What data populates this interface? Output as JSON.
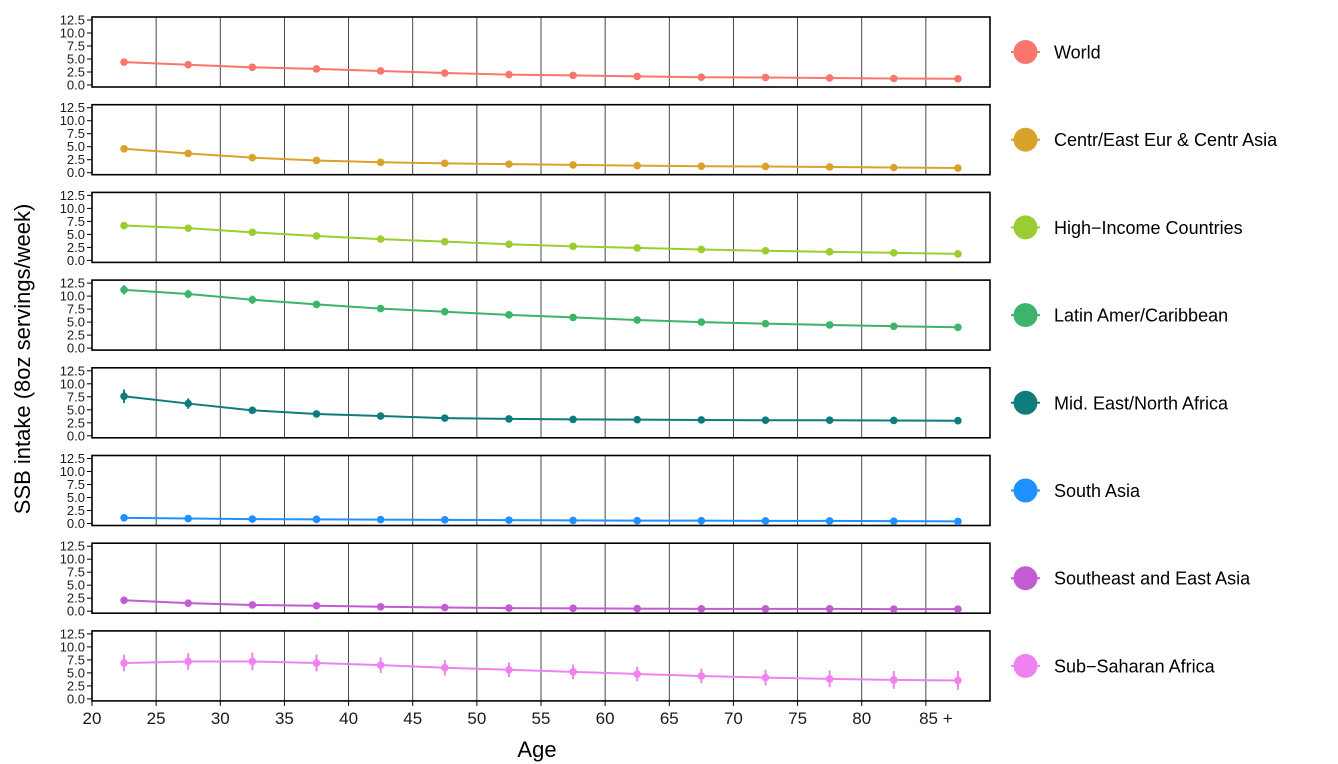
{
  "chart_data": {
    "type": "line",
    "xlabel": "Age",
    "ylabel": "SSB intake (8oz servings/week)",
    "xlim": [
      20,
      90
    ],
    "x_ticks": [
      20,
      25,
      30,
      35,
      40,
      45,
      50,
      55,
      60,
      65,
      70,
      75,
      80,
      85
    ],
    "x_tick_labels": [
      "20",
      "25",
      "30",
      "35",
      "40",
      "45",
      "50",
      "55",
      "60",
      "65",
      "70",
      "75",
      "80",
      "85 +"
    ],
    "ylim": [
      0,
      12.5
    ],
    "y_ticks": [
      0,
      2.5,
      5,
      7.5,
      10,
      12.5
    ],
    "y_tick_labels": [
      "0.0",
      "2.5",
      "5.0",
      "7.5",
      "10.0",
      "12.5"
    ],
    "grid": "vertical lines at each x tick",
    "legend_position": "right",
    "x": [
      22.5,
      27.5,
      32.5,
      37.5,
      42.5,
      47.5,
      52.5,
      57.5,
      62.5,
      67.5,
      72.5,
      77.5,
      82.5,
      87.5
    ],
    "series": [
      {
        "name": "World",
        "color": "#F8766D",
        "values": [
          4.4,
          3.9,
          3.4,
          3.1,
          2.7,
          2.3,
          2.0,
          1.85,
          1.65,
          1.5,
          1.45,
          1.35,
          1.25,
          1.2
        ],
        "err": [
          0.3,
          0.25,
          0.2,
          0.2,
          0.2,
          0.15,
          0.15,
          0.15,
          0.1,
          0.1,
          0.1,
          0.1,
          0.1,
          0.1
        ]
      },
      {
        "name": "Centr/East Eur & Centr Asia",
        "color": "#D9A22A",
        "values": [
          4.6,
          3.7,
          2.9,
          2.35,
          2.0,
          1.8,
          1.65,
          1.5,
          1.35,
          1.25,
          1.2,
          1.1,
          1.0,
          0.9
        ],
        "err": [
          0.5,
          0.4,
          0.3,
          0.25,
          0.2,
          0.2,
          0.2,
          0.15,
          0.15,
          0.15,
          0.15,
          0.15,
          0.15,
          0.15
        ]
      },
      {
        "name": "High−Income Countries",
        "color": "#9ACD32",
        "values": [
          6.7,
          6.2,
          5.4,
          4.7,
          4.1,
          3.6,
          3.1,
          2.7,
          2.4,
          2.1,
          1.85,
          1.65,
          1.45,
          1.25
        ],
        "err": [
          0.3,
          0.3,
          0.25,
          0.25,
          0.2,
          0.2,
          0.2,
          0.15,
          0.15,
          0.15,
          0.15,
          0.15,
          0.15,
          0.15
        ]
      },
      {
        "name": "Latin Amer/Caribbean",
        "color": "#3DB36B",
        "values": [
          11.2,
          10.4,
          9.3,
          8.4,
          7.6,
          7.0,
          6.4,
          5.9,
          5.4,
          5.0,
          4.7,
          4.45,
          4.2,
          4.0
        ],
        "err": [
          0.9,
          0.8,
          0.8,
          0.7,
          0.6,
          0.6,
          0.5,
          0.5,
          0.5,
          0.5,
          0.5,
          0.5,
          0.5,
          0.6
        ]
      },
      {
        "name": "Mid. East/North Africa",
        "color": "#0F7B7B",
        "values": [
          7.6,
          6.2,
          4.9,
          4.2,
          3.8,
          3.4,
          3.25,
          3.15,
          3.1,
          3.05,
          3.0,
          3.0,
          2.95,
          2.9
        ],
        "err": [
          1.3,
          1.0,
          0.6,
          0.5,
          0.4,
          0.35,
          0.3,
          0.3,
          0.3,
          0.3,
          0.3,
          0.3,
          0.3,
          0.4
        ]
      },
      {
        "name": "South Asia",
        "color": "#1E90FF",
        "values": [
          1.1,
          0.95,
          0.85,
          0.8,
          0.75,
          0.7,
          0.65,
          0.6,
          0.55,
          0.55,
          0.5,
          0.5,
          0.45,
          0.4
        ],
        "err": [
          0.2,
          0.15,
          0.15,
          0.15,
          0.1,
          0.1,
          0.1,
          0.1,
          0.1,
          0.1,
          0.1,
          0.1,
          0.1,
          0.1
        ]
      },
      {
        "name": "Southeast and East Asia",
        "color": "#C45AD4",
        "values": [
          2.1,
          1.55,
          1.2,
          1.05,
          0.85,
          0.7,
          0.6,
          0.55,
          0.5,
          0.45,
          0.45,
          0.45,
          0.4,
          0.4
        ],
        "err": [
          0.3,
          0.25,
          0.2,
          0.15,
          0.15,
          0.1,
          0.1,
          0.1,
          0.1,
          0.1,
          0.1,
          0.1,
          0.1,
          0.1
        ]
      },
      {
        "name": "Sub−Saharan Africa",
        "color": "#EE82EE",
        "values": [
          6.9,
          7.2,
          7.2,
          6.9,
          6.5,
          6.0,
          5.6,
          5.2,
          4.8,
          4.4,
          4.1,
          3.85,
          3.65,
          3.55
        ],
        "err": [
          1.6,
          1.6,
          1.7,
          1.6,
          1.5,
          1.5,
          1.4,
          1.4,
          1.4,
          1.4,
          1.5,
          1.6,
          1.7,
          1.8
        ]
      }
    ]
  }
}
